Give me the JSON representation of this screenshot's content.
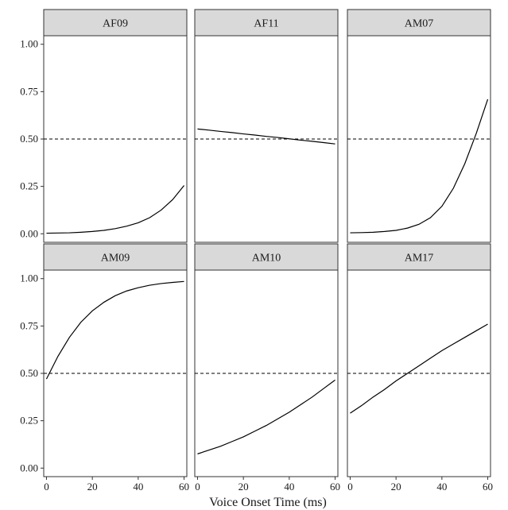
{
  "chart_data": {
    "type": "line",
    "xlabel": "Voice Onset Time (ms)",
    "ylabel": "",
    "xlim": [
      0,
      60
    ],
    "ylim": [
      0,
      1
    ],
    "x_ticks": [
      "0",
      "20",
      "40",
      "60"
    ],
    "y_ticks": [
      "0.00",
      "0.25",
      "0.50",
      "0.75",
      "1.00"
    ],
    "reference_line": {
      "y": 0.5,
      "style": "dashed"
    },
    "grid": false,
    "panels": [
      {
        "label": "AF09",
        "x": [
          0,
          5,
          10,
          15,
          20,
          25,
          30,
          35,
          40,
          45,
          50,
          55,
          60
        ],
        "y": [
          0.003,
          0.004,
          0.005,
          0.008,
          0.012,
          0.018,
          0.027,
          0.04,
          0.058,
          0.085,
          0.125,
          0.18,
          0.255
        ]
      },
      {
        "label": "AF11",
        "x": [
          0,
          5,
          10,
          15,
          20,
          25,
          30,
          35,
          40,
          45,
          50,
          55,
          60
        ],
        "y": [
          0.553,
          0.547,
          0.54,
          0.534,
          0.527,
          0.521,
          0.514,
          0.508,
          0.501,
          0.494,
          0.488,
          0.481,
          0.474
        ]
      },
      {
        "label": "AM07",
        "x": [
          0,
          5,
          10,
          15,
          20,
          25,
          30,
          35,
          40,
          45,
          50,
          55,
          60
        ],
        "y": [
          0.005,
          0.006,
          0.008,
          0.012,
          0.018,
          0.03,
          0.05,
          0.085,
          0.145,
          0.24,
          0.37,
          0.53,
          0.71
        ]
      },
      {
        "label": "AM09",
        "x": [
          0,
          5,
          10,
          15,
          20,
          25,
          30,
          35,
          40,
          45,
          50,
          55,
          60
        ],
        "y": [
          0.47,
          0.59,
          0.69,
          0.77,
          0.83,
          0.875,
          0.91,
          0.935,
          0.952,
          0.965,
          0.974,
          0.98,
          0.985
        ]
      },
      {
        "label": "AM10",
        "x": [
          0,
          5,
          10,
          15,
          20,
          25,
          30,
          35,
          40,
          45,
          50,
          55,
          60
        ],
        "y": [
          0.075,
          0.095,
          0.115,
          0.14,
          0.165,
          0.195,
          0.225,
          0.26,
          0.295,
          0.335,
          0.375,
          0.42,
          0.465
        ]
      },
      {
        "label": "AM17",
        "x": [
          0,
          5,
          10,
          15,
          20,
          25,
          30,
          35,
          40,
          45,
          50,
          55,
          60
        ],
        "y": [
          0.29,
          0.33,
          0.375,
          0.415,
          0.46,
          0.5,
          0.54,
          0.58,
          0.62,
          0.655,
          0.69,
          0.725,
          0.76
        ]
      }
    ]
  }
}
